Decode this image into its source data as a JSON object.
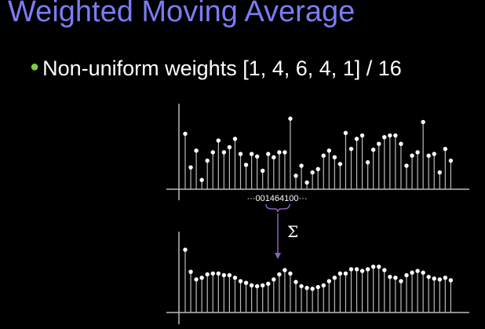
{
  "slide": {
    "title": "Weighted Moving Average",
    "bullet": "Non-uniform weights [1, 4, 6, 4, 1] / 16"
  },
  "kernel": {
    "sequence_label": "···001464100···",
    "operator_symbol": "Σ"
  },
  "colors": {
    "title": "#7b7cf3",
    "bullet_dot": "#7ecb3f",
    "arrow": "#8a5fc9",
    "stems": "#bbbbbb",
    "points": "#ffffff"
  },
  "chart_data": [
    {
      "type": "scatter",
      "title": "",
      "values": [
        66,
        26,
        46,
        11,
        34,
        44,
        58,
        44,
        50,
        60,
        42,
        29,
        42,
        39,
        22,
        42,
        38,
        44,
        44,
        84,
        16,
        28,
        8,
        20,
        24,
        40,
        46,
        38,
        30,
        67,
        48,
        60,
        64,
        32,
        47,
        54,
        62,
        64,
        64,
        54,
        28,
        40,
        44,
        80,
        40,
        42,
        20,
        48,
        34
      ],
      "ylim": [
        0,
        100
      ]
    },
    {
      "type": "scatter",
      "title": "",
      "values": [
        74,
        48,
        39,
        41,
        45,
        46,
        46,
        44,
        44,
        41,
        37,
        35,
        32,
        31,
        32,
        34,
        39,
        45,
        50,
        46,
        36,
        31,
        29,
        28,
        30,
        32,
        37,
        41,
        46,
        46,
        51,
        51,
        49,
        51,
        54,
        54,
        50,
        42,
        41,
        37,
        44,
        47,
        49,
        47,
        42,
        40,
        39,
        41,
        38
      ],
      "ylim": [
        0,
        100
      ]
    }
  ]
}
